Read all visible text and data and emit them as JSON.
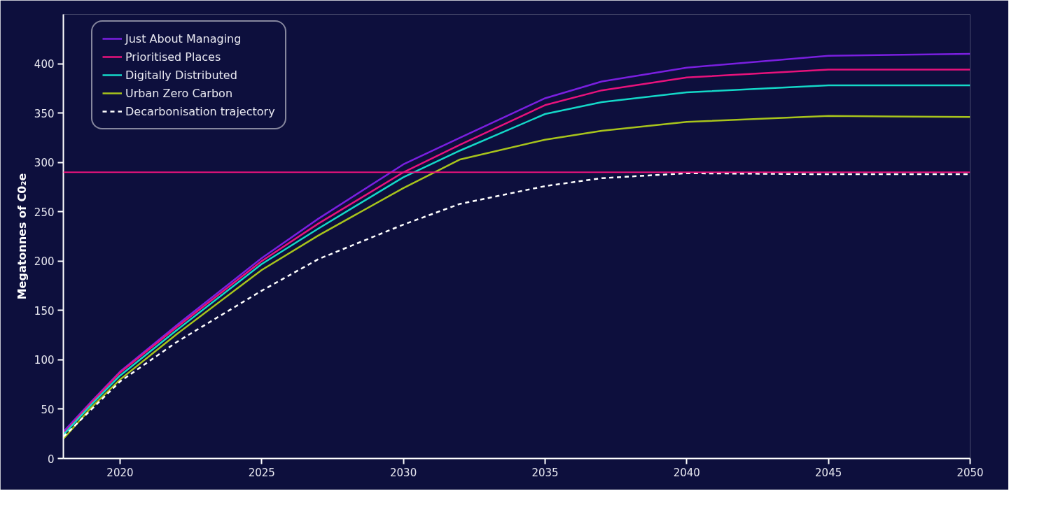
{
  "chart_data": {
    "type": "line",
    "ylabel": "Megatonnes of C0₂e",
    "x": [
      2018,
      2019,
      2020,
      2022,
      2025,
      2027,
      2030,
      2032,
      2035,
      2037,
      2040,
      2045,
      2050
    ],
    "series": [
      {
        "name": "Just About Managing",
        "color": "#7a1fe0",
        "values": [
          27,
          58,
          88,
          135,
          203,
          243,
          298,
          325,
          365,
          382,
          396,
          408,
          410
        ]
      },
      {
        "name": "Prioritised Places",
        "color": "#e8127c",
        "values": [
          25,
          57,
          87,
          133,
          200,
          238,
          290,
          318,
          358,
          373,
          386,
          394,
          394
        ]
      },
      {
        "name": "Digitally Distributed",
        "color": "#14d8c8",
        "values": [
          24,
          55,
          84,
          130,
          197,
          233,
          285,
          312,
          349,
          361,
          371,
          378,
          378
        ]
      },
      {
        "name": "Urban Zero Carbon",
        "color": "#a8c41c",
        "values": [
          20,
          52,
          80,
          126,
          191,
          226,
          274,
          303,
          323,
          332,
          341,
          347,
          346
        ]
      },
      {
        "name": "Decarbonisation trajectory",
        "color": "#ffffff",
        "line_style": "dashed",
        "values": [
          22,
          50,
          78,
          118,
          170,
          202,
          237,
          258,
          276,
          284,
          289,
          288,
          288
        ]
      }
    ],
    "ref_lines": [
      {
        "axis": "y",
        "value": 290,
        "label": null,
        "color": "#e8127c"
      }
    ],
    "xlim": [
      2018,
      2050
    ],
    "xticks": [
      2020,
      2025,
      2030,
      2035,
      2040,
      2045,
      2050
    ],
    "ylim": [
      0,
      450
    ],
    "yticks": [
      0,
      50,
      100,
      150,
      200,
      250,
      300,
      350,
      400
    ],
    "grid": false,
    "legend": "top left",
    "line_style": "solid",
    "marker": "none"
  }
}
